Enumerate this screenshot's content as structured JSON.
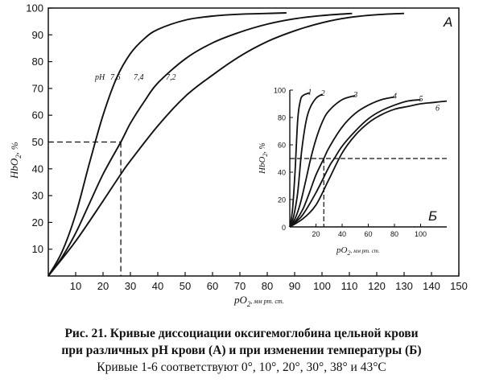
{
  "chart_data": [
    {
      "panel": "A",
      "type": "line",
      "panel_letter": "А",
      "xlabel": "pO",
      "xlabel_sub": "2",
      "xlabel_units": ", мм рт. ст.",
      "ylabel": "HbO",
      "ylabel_sub": "2",
      "ylabel_units": ", %",
      "xlim": [
        0,
        150
      ],
      "ylim": [
        0,
        100
      ],
      "xticks": [
        10,
        20,
        30,
        40,
        50,
        60,
        70,
        80,
        90,
        100,
        110,
        120,
        130,
        140,
        150
      ],
      "yticks": [
        10,
        20,
        30,
        40,
        50,
        60,
        70,
        80,
        90,
        100
      ],
      "grid": false,
      "series_label_prefix": "pH",
      "series": [
        {
          "name": "7,6",
          "x": [
            0,
            5,
            10,
            15,
            20,
            25,
            30,
            35,
            40,
            50,
            60,
            70,
            80,
            87
          ],
          "y": [
            0,
            9,
            23,
            42,
            60,
            74,
            83,
            88.5,
            92,
            95.5,
            97,
            97.7,
            98,
            98.2
          ]
        },
        {
          "name": "7,4",
          "x": [
            0,
            5,
            10,
            15,
            20,
            26.5,
            30,
            35,
            40,
            50,
            60,
            70,
            80,
            90,
            100,
            111
          ],
          "y": [
            0,
            7,
            16,
            27,
            38,
            50,
            57,
            65,
            72,
            81,
            87,
            91,
            94,
            96,
            97.2,
            98
          ]
        },
        {
          "name": "7,2",
          "x": [
            0,
            10,
            20,
            26.5,
            30,
            40,
            50,
            60,
            70,
            80,
            90,
            100,
            110,
            120,
            130
          ],
          "y": [
            0,
            13,
            28,
            38,
            43,
            56,
            67,
            75,
            82,
            87.5,
            91.5,
            94.5,
            96.5,
            97.5,
            98
          ]
        }
      ],
      "reference_lines": {
        "y": 50,
        "x": [
          23.5,
          26.5
        ]
      }
    },
    {
      "panel": "B",
      "type": "line",
      "panel_letter": "Б",
      "xlabel": "pO",
      "xlabel_sub": "2",
      "xlabel_units": ", мм рт. ст.",
      "ylabel": "HbO",
      "ylabel_sub": "2",
      "ylabel_units": ", %",
      "xlim": [
        0,
        120
      ],
      "ylim": [
        0,
        100
      ],
      "xticks": [
        20,
        40,
        60,
        80,
        100
      ],
      "yticks": [
        20,
        40,
        60,
        80,
        100
      ],
      "grid": false,
      "series": [
        {
          "name": "1",
          "x": [
            0,
            2,
            4,
            6,
            8,
            10,
            15
          ],
          "y": [
            0,
            12,
            40,
            78,
            92,
            96,
            98
          ]
        },
        {
          "name": "2",
          "x": [
            0,
            3,
            6,
            9,
            12,
            15,
            20,
            25
          ],
          "y": [
            0,
            8,
            25,
            55,
            75,
            86,
            94,
            97
          ]
        },
        {
          "name": "3",
          "x": [
            0,
            4,
            8,
            12,
            16,
            20,
            25,
            30,
            40,
            50
          ],
          "y": [
            0,
            6,
            17,
            33,
            50,
            64,
            77,
            85,
            93,
            96
          ]
        },
        {
          "name": "4",
          "x": [
            0,
            5,
            10,
            15,
            20,
            26,
            30,
            40,
            50,
            60,
            70,
            80
          ],
          "y": [
            0,
            5,
            13,
            25,
            38,
            50,
            58,
            73,
            83,
            89,
            93,
            95
          ]
        },
        {
          "name": "5",
          "x": [
            0,
            5,
            10,
            20,
            30,
            34,
            40,
            50,
            60,
            70,
            80,
            90,
            100
          ],
          "y": [
            0,
            4,
            9,
            25,
            44,
            50,
            59,
            70,
            79,
            85,
            89,
            92,
            93
          ]
        },
        {
          "name": "6",
          "x": [
            0,
            10,
            20,
            30,
            40,
            50,
            60,
            70,
            80,
            90,
            100,
            110,
            120
          ],
          "y": [
            0,
            6,
            16,
            35,
            54,
            67,
            76,
            82,
            86,
            88,
            90,
            91,
            92
          ]
        }
      ],
      "reference_lines": {
        "y": 50,
        "x": [
          26,
          34
        ]
      }
    }
  ],
  "caption": {
    "line1": "Рис. 21. Кривые диссоциации оксигемоглобина цельной крови",
    "line2": "при различных pH крови (А) и при изменении температуры (Б)",
    "line3": "Кривые 1-6 соответствуют 0°, 10°, 20°, 30°, 38° и 43°С"
  }
}
